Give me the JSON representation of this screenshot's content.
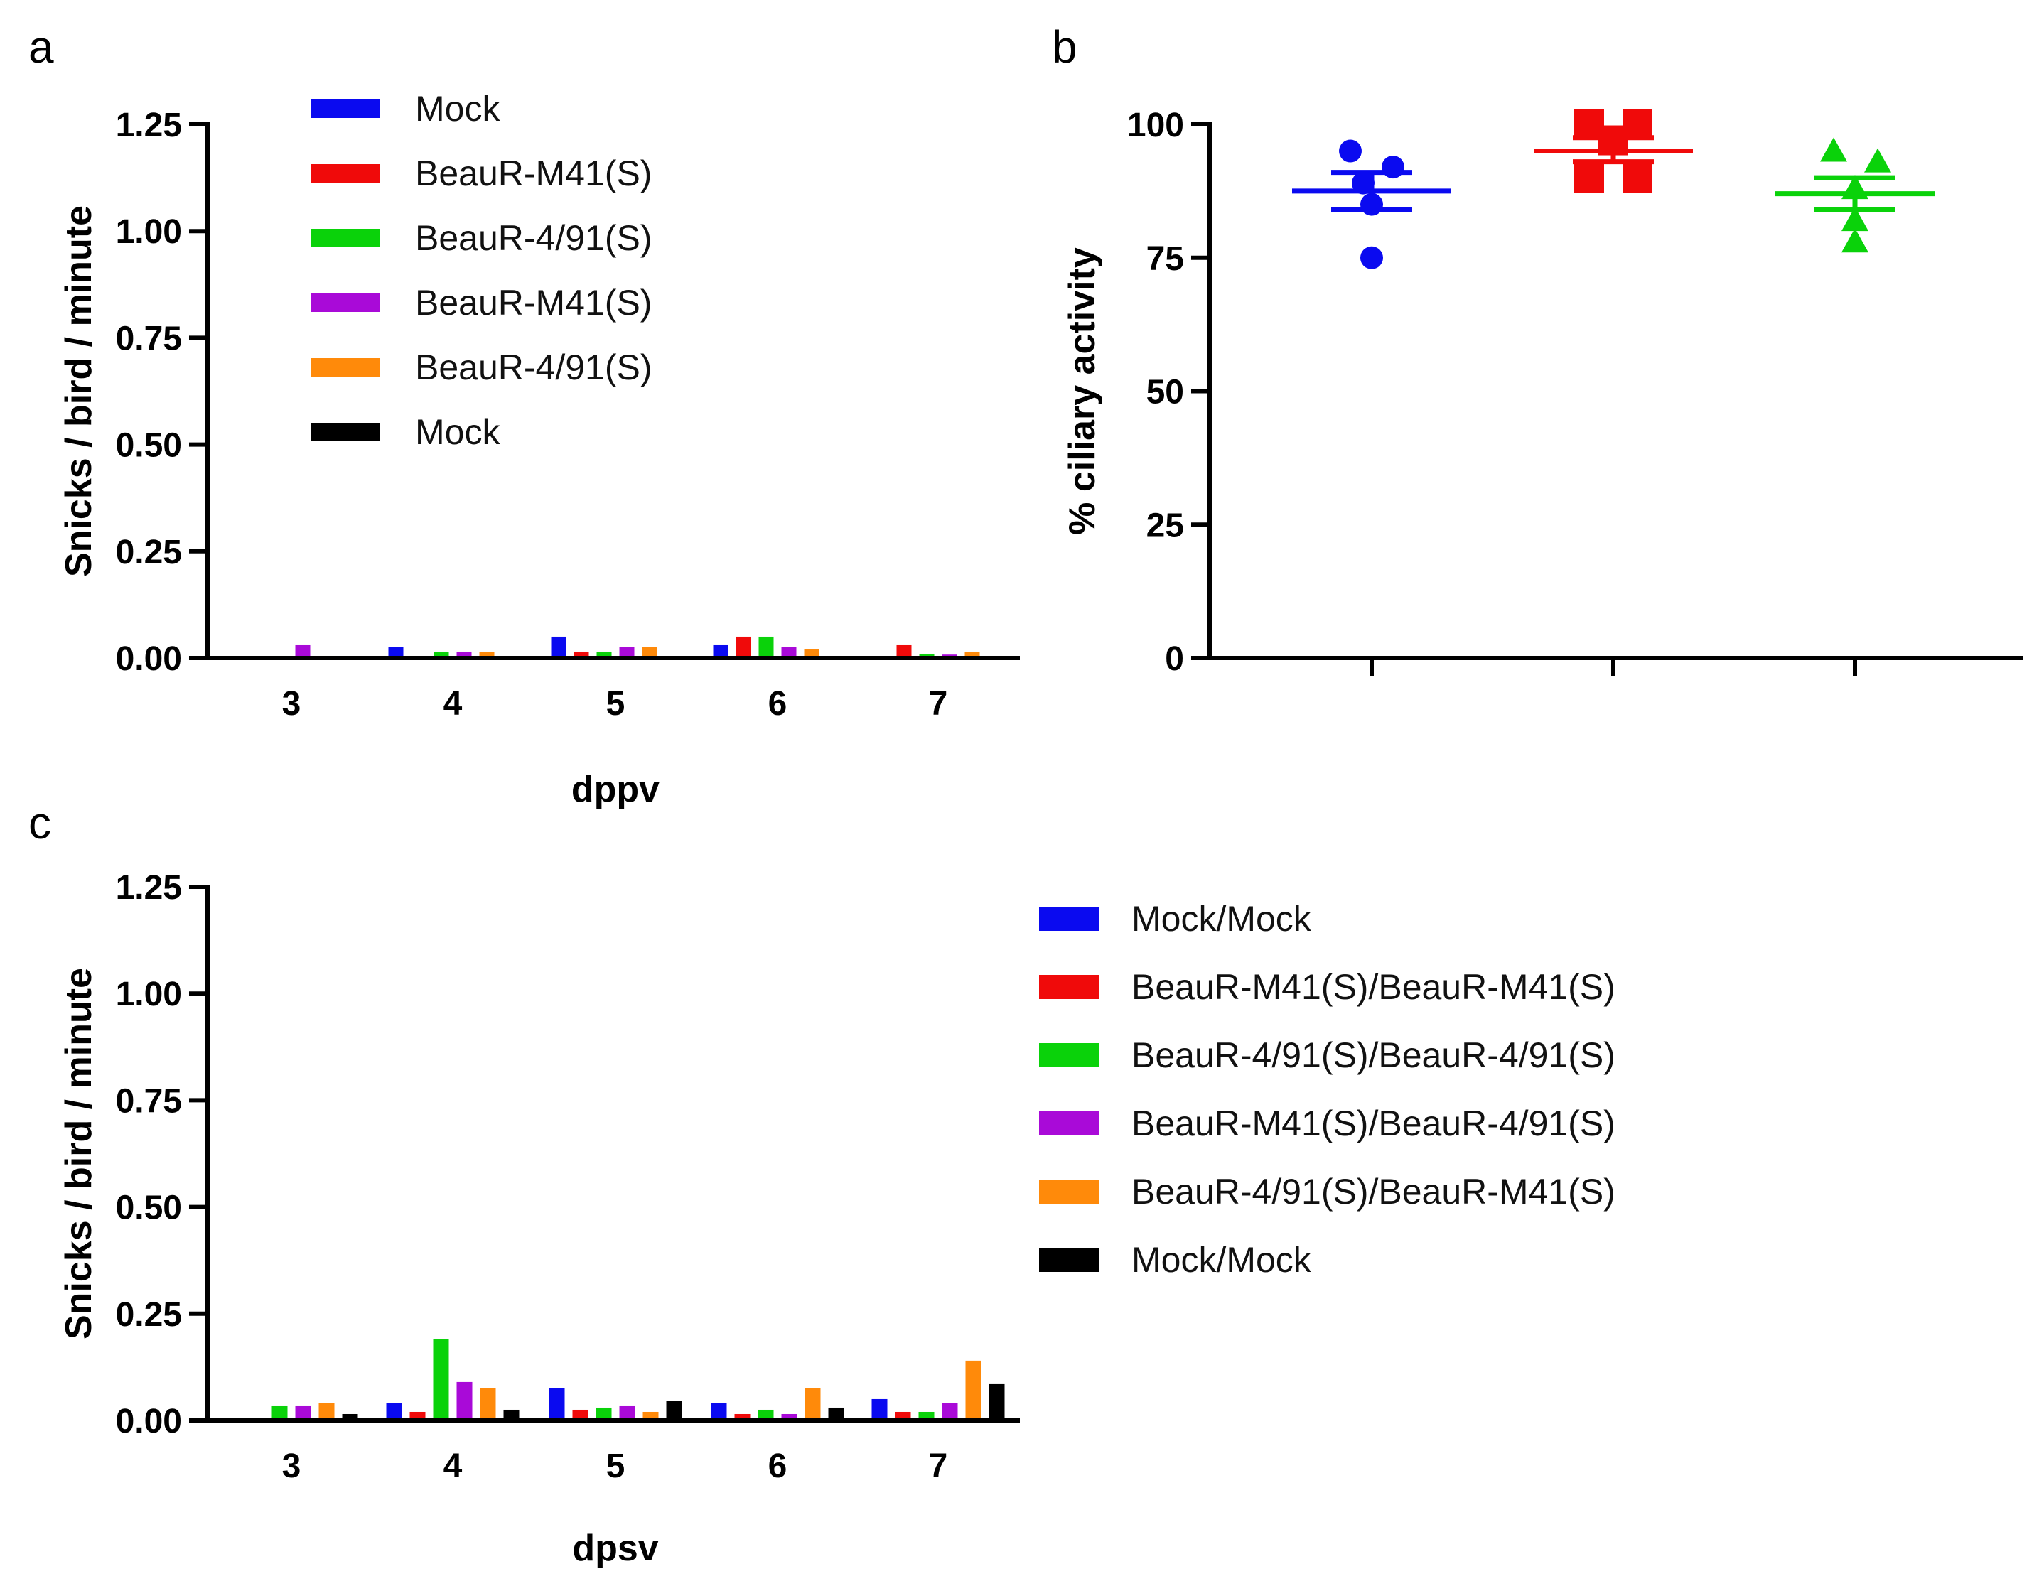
{
  "panels": [
    {
      "letter": "a"
    },
    {
      "letter": "b"
    },
    {
      "letter": "c"
    }
  ],
  "colors": {
    "blue": "#0a0af0",
    "red": "#f00a0a",
    "green": "#0ad20a",
    "purple": "#a90ad8",
    "orange": "#ff8a0a",
    "black": "#000000"
  },
  "chart_data": [
    {
      "panel": "a",
      "type": "bar",
      "xlabel": "dppv",
      "ylabel": "Snicks / bird / minute",
      "ylim": [
        0,
        1.25
      ],
      "yticks": [
        "0.00",
        "0.25",
        "0.50",
        "0.75",
        "1.00",
        "1.25"
      ],
      "categories": [
        "3",
        "4",
        "5",
        "6",
        "7"
      ],
      "legend_position": "top-left",
      "series": [
        {
          "name": "Mock",
          "color": "blue",
          "values": [
            0.0,
            0.025,
            0.05,
            0.03,
            0.0
          ]
        },
        {
          "name": "BeauR-M41(S)",
          "color": "red",
          "values": [
            0.0,
            0.0,
            0.015,
            0.05,
            0.03
          ]
        },
        {
          "name": "BeauR-4/91(S)",
          "color": "green",
          "values": [
            0.005,
            0.015,
            0.015,
            0.05,
            0.01
          ]
        },
        {
          "name": "BeauR-M41(S)",
          "color": "purple",
          "values": [
            0.03,
            0.015,
            0.025,
            0.025,
            0.008
          ]
        },
        {
          "name": "BeauR-4/91(S)",
          "color": "orange",
          "values": [
            0.005,
            0.015,
            0.025,
            0.02,
            0.015
          ]
        },
        {
          "name": "Mock",
          "color": "black",
          "values": [
            0.0,
            0.0,
            0.0,
            0.005,
            0.005
          ]
        }
      ]
    },
    {
      "panel": "b",
      "type": "scatter",
      "xlabel": "",
      "ylabel": "% ciliary activity",
      "ylim": [
        0,
        100
      ],
      "yticks": [
        "0",
        "25",
        "50",
        "75",
        "100"
      ],
      "groups": [
        {
          "color": "blue",
          "marker": "circle",
          "values": [
            95,
            92,
            89,
            85,
            75
          ],
          "mean": 87.5,
          "sem_low": 84,
          "sem_high": 91
        },
        {
          "color": "red",
          "marker": "square",
          "values": [
            100,
            100,
            97,
            90,
            90
          ],
          "mean": 95,
          "sem_low": 93,
          "sem_high": 97.5
        },
        {
          "color": "green",
          "marker": "triangle",
          "values": [
            95,
            93,
            88,
            82,
            78
          ],
          "mean": 87,
          "sem_low": 84,
          "sem_high": 90
        }
      ]
    },
    {
      "panel": "c",
      "type": "bar",
      "xlabel": "dpsv",
      "ylabel": "Snicks / bird / minute",
      "ylim": [
        0,
        1.25
      ],
      "yticks": [
        "0.00",
        "0.25",
        "0.50",
        "0.75",
        "1.00",
        "1.25"
      ],
      "categories": [
        "3",
        "4",
        "5",
        "6",
        "7"
      ],
      "legend_position": "right",
      "series": [
        {
          "name": "Mock/Mock",
          "color": "blue",
          "values": [
            0.0,
            0.04,
            0.075,
            0.04,
            0.05
          ]
        },
        {
          "name": "BeauR-M41(S)/BeauR-M41(S)",
          "color": "red",
          "values": [
            0.0,
            0.02,
            0.025,
            0.015,
            0.02
          ]
        },
        {
          "name": "BeauR-4/91(S)/BeauR-4/91(S)",
          "color": "green",
          "values": [
            0.035,
            0.19,
            0.03,
            0.025,
            0.02
          ]
        },
        {
          "name": "BeauR-M41(S)/BeauR-4/91(S)",
          "color": "purple",
          "values": [
            0.035,
            0.09,
            0.035,
            0.015,
            0.04
          ]
        },
        {
          "name": "BeauR-4/91(S)/BeauR-M41(S)",
          "color": "orange",
          "values": [
            0.04,
            0.075,
            0.02,
            0.075,
            0.14
          ]
        },
        {
          "name": "Mock/Mock",
          "color": "black",
          "values": [
            0.015,
            0.025,
            0.045,
            0.03,
            0.085
          ]
        }
      ]
    }
  ]
}
